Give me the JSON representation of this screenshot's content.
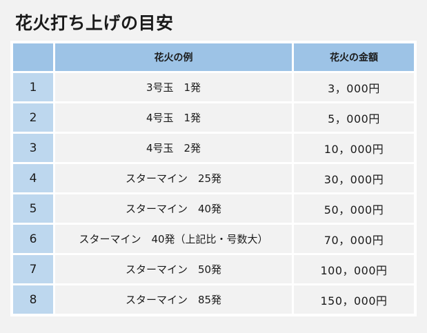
{
  "title": "花火打ち上げの目安",
  "table": {
    "headers": {
      "no": "",
      "example": "花火の例",
      "price": "花火の金額"
    },
    "rows": [
      {
        "no": "1",
        "example": "3号玉　1発",
        "price": "3，000円"
      },
      {
        "no": "2",
        "example": "4号玉　1発",
        "price": "5，000円"
      },
      {
        "no": "3",
        "example": "4号玉　2発",
        "price": "10，000円"
      },
      {
        "no": "4",
        "example": "スターマイン　25発",
        "price": "30，000円"
      },
      {
        "no": "5",
        "example": "スターマイン　40発",
        "price": "50，000円"
      },
      {
        "no": "6",
        "example": "スターマイン　40発（上記比・号数大）",
        "price": "70，000円"
      },
      {
        "no": "7",
        "example": "スターマイン　50発",
        "price": "100，000円"
      },
      {
        "no": "8",
        "example": "スターマイン　85発",
        "price": "150，000円"
      }
    ]
  }
}
